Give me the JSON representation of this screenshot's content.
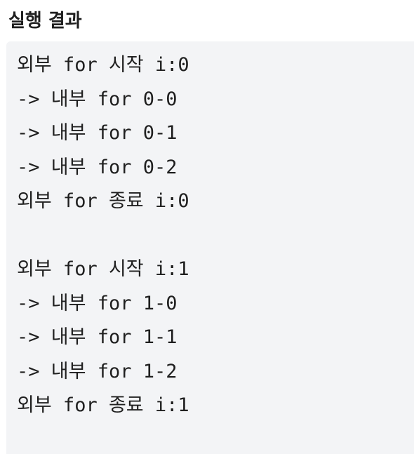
{
  "heading": "실행 결과",
  "output_lines": [
    "외부 for 시작 i:0",
    "-> 내부 for 0-0",
    "-> 내부 for 0-1",
    "-> 내부 for 0-2",
    "외부 for 종료 i:0",
    "",
    "외부 for 시작 i:1",
    "-> 내부 for 1-0",
    "-> 내부 for 1-1",
    "-> 내부 for 1-2",
    "외부 for 종료 i:1"
  ]
}
